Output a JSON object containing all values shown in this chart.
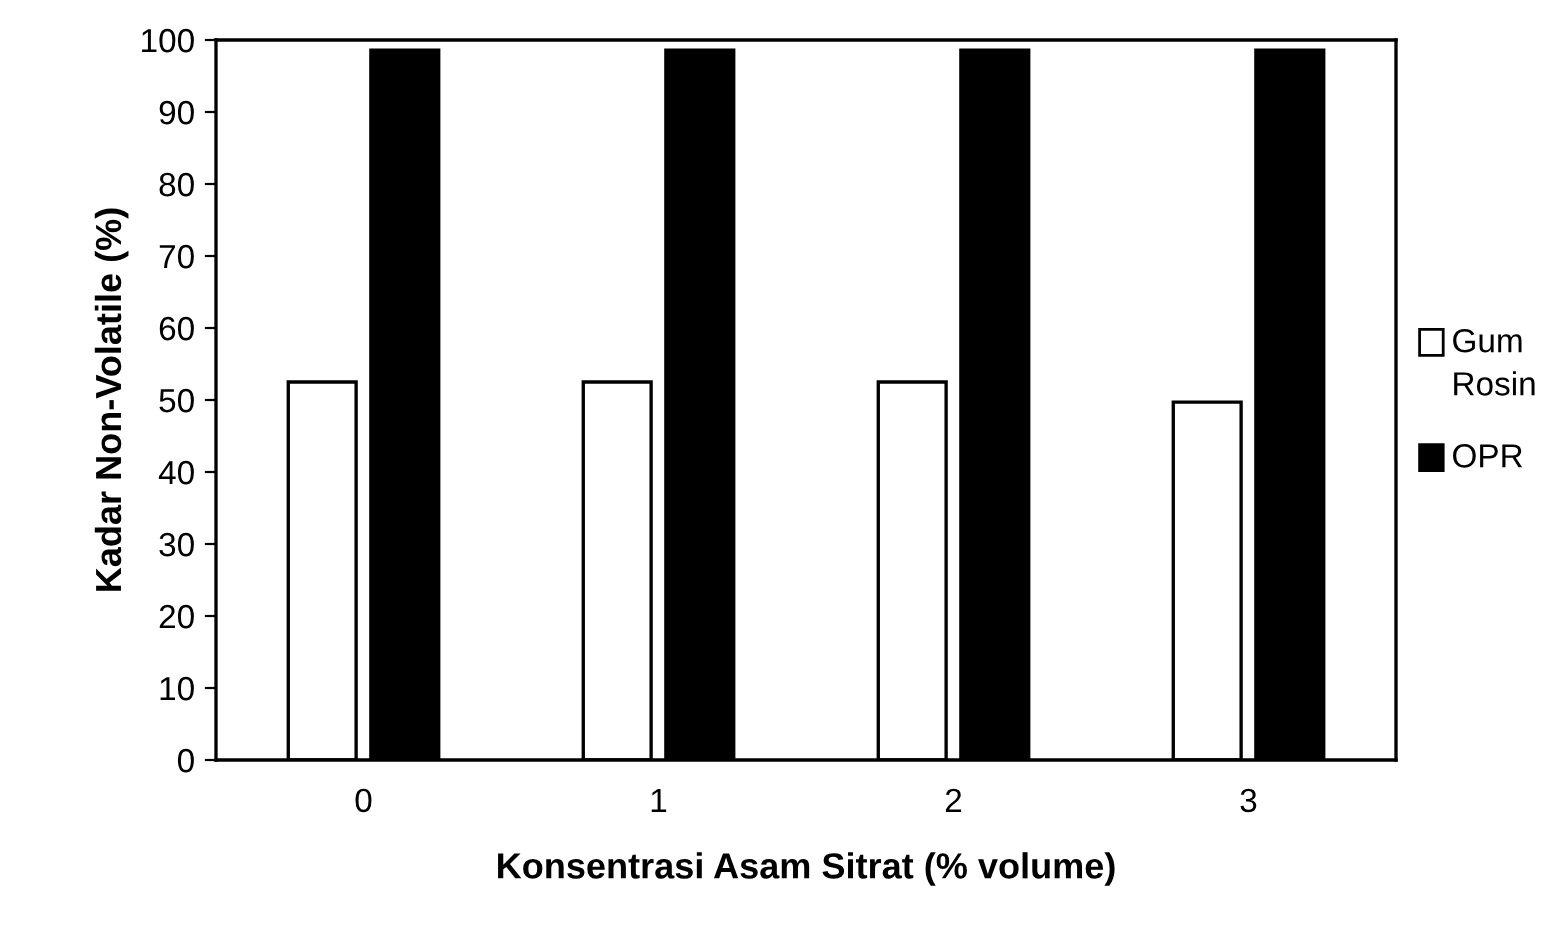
{
  "chart_data": {
    "type": "bar",
    "xlabel": "Konsentrasi Asam Sitrat (% volume)",
    "ylabel": "Kadar Non-Volatile (%)",
    "categories": [
      "0",
      "1",
      "2",
      "3"
    ],
    "series": [
      {
        "name": "Gum Rosin",
        "color": "#ffffff",
        "values": [
          52.5,
          52.5,
          52.5,
          49.7
        ]
      },
      {
        "name": "OPR",
        "color": "#000000",
        "values": [
          98.6,
          98.6,
          98.6,
          98.6
        ]
      }
    ],
    "ylim": [
      0,
      100
    ],
    "yticks": [
      0,
      10,
      20,
      30,
      40,
      50,
      60,
      70,
      80,
      90,
      100
    ],
    "grid": false,
    "legend": "right"
  }
}
